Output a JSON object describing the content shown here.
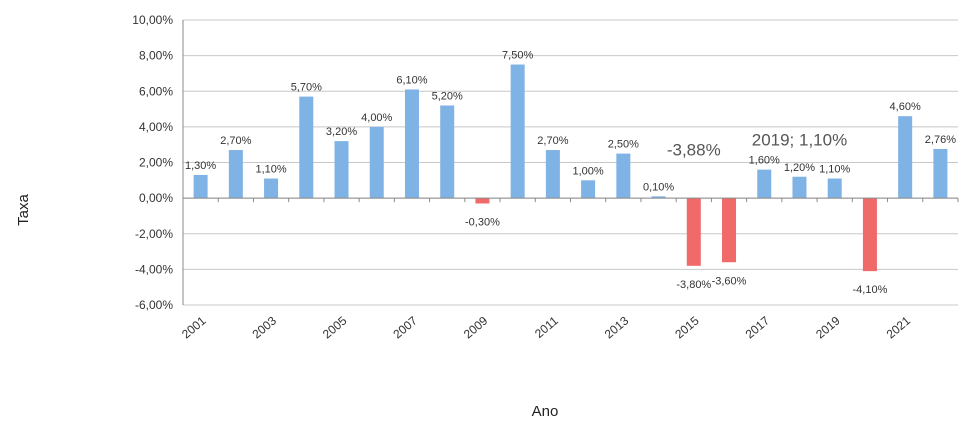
{
  "chart_data": {
    "type": "bar",
    "xlabel": "Ano",
    "ylabel": "Taxa",
    "ylim": [
      -6,
      10
    ],
    "y_ticks": [
      "10,00%",
      "8,00%",
      "6,00%",
      "4,00%",
      "2,00%",
      "0,00%",
      "-2,00%",
      "-4,00%",
      "-6,00%"
    ],
    "x_tick_labels": [
      "2001",
      "2003",
      "2005",
      "2007",
      "2009",
      "2011",
      "2013",
      "2015",
      "2017",
      "2019",
      "2021"
    ],
    "grid": true,
    "legend": "none",
    "colors": {
      "positive": "#7fb2e5",
      "negative": "#f06a6a"
    },
    "categories": [
      "2001",
      "2002",
      "2003",
      "2004",
      "2005",
      "2006",
      "2007",
      "2008",
      "2009",
      "2010",
      "2011",
      "2012",
      "2013",
      "2014",
      "2015",
      "2016",
      "2017",
      "2018",
      "2019",
      "2020",
      "2021",
      "2022"
    ],
    "values": [
      1.3,
      2.7,
      1.1,
      5.7,
      3.2,
      4.0,
      6.1,
      5.2,
      -0.3,
      7.5,
      2.7,
      1.0,
      2.5,
      0.1,
      -3.8,
      -3.6,
      1.6,
      1.2,
      1.1,
      -4.1,
      4.6,
      2.76
    ],
    "data_labels": [
      "1,30%",
      "2,70%",
      "1,10%",
      "5,70%",
      "3,20%",
      "4,00%",
      "6,10%",
      "5,20%",
      "-0,30%",
      "7,50%",
      "2,70%",
      "1,00%",
      "2,50%",
      "0,10%",
      "-3,80%",
      "-3,60%",
      "1,60%",
      "1,20%",
      "1,10%",
      "-4,10%",
      "4,60%",
      "2,76%"
    ],
    "annotations": [
      "-3,88%",
      "2019; 1,10%"
    ]
  }
}
